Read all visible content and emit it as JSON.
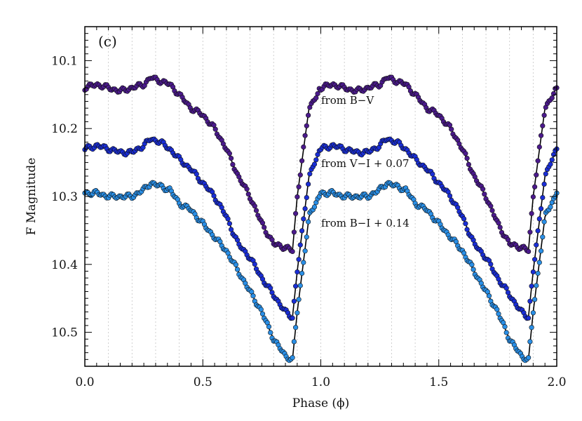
{
  "chart_data": {
    "type": "scatter",
    "panel_label": "(c)",
    "xlabel": "Phase (ϕ)",
    "ylabel": "F Magnitude",
    "xlim": [
      0.0,
      2.0
    ],
    "ylim": [
      10.05,
      10.55
    ],
    "y_inverted": true,
    "x_ticks": [
      0.0,
      0.5,
      1.0,
      1.5,
      2.0
    ],
    "x_tick_labels": [
      "0.0",
      "0.5",
      "1.0",
      "1.5",
      "2.0"
    ],
    "y_ticks": [
      10.1,
      10.2,
      10.3,
      10.4,
      10.5
    ],
    "y_tick_labels": [
      "10.1",
      "10.2",
      "10.3",
      "10.4",
      "10.5"
    ],
    "grid": "vertical dotted lines every 0.1 in phase",
    "phase_knots": [
      0.0,
      0.05,
      0.1,
      0.15,
      0.2,
      0.25,
      0.28,
      0.32,
      0.36,
      0.4,
      0.45,
      0.5,
      0.55,
      0.6,
      0.65,
      0.7,
      0.75,
      0.8,
      0.85,
      0.88,
      0.9,
      0.95,
      1.0
    ],
    "series": [
      {
        "label": "from B−V",
        "color": "#4b1a8c",
        "magnitudes": [
          10.14,
          10.135,
          10.14,
          10.145,
          10.14,
          10.135,
          10.125,
          10.13,
          10.135,
          10.15,
          10.17,
          10.18,
          10.2,
          10.23,
          10.27,
          10.3,
          10.34,
          10.37,
          10.375,
          10.38,
          10.3,
          10.17,
          10.14
        ]
      },
      {
        "label": "from V−I + 0.07",
        "color": "#1a2ed6",
        "magnitudes": [
          10.23,
          10.225,
          10.23,
          10.235,
          10.235,
          10.225,
          10.215,
          10.22,
          10.23,
          10.245,
          10.26,
          10.28,
          10.3,
          10.33,
          10.37,
          10.39,
          10.42,
          10.445,
          10.47,
          10.478,
          10.41,
          10.27,
          10.23
        ]
      },
      {
        "label": "from B−I + 0.14",
        "color": "#2a8fe6",
        "magnitudes": [
          10.295,
          10.295,
          10.3,
          10.3,
          10.3,
          10.29,
          10.28,
          10.285,
          10.29,
          10.31,
          10.32,
          10.34,
          10.36,
          10.38,
          10.41,
          10.44,
          10.47,
          10.51,
          10.535,
          10.54,
          10.47,
          10.33,
          10.295
        ]
      }
    ]
  }
}
